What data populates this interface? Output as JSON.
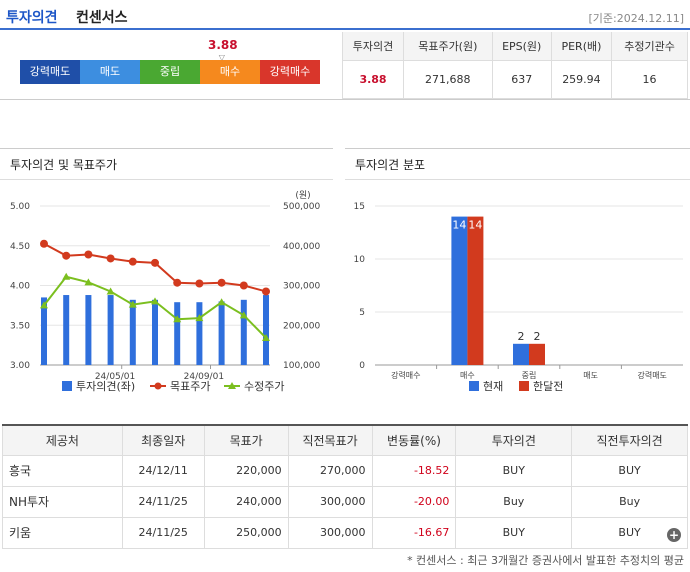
{
  "header": {
    "title_part1": "투자의견",
    "title_part2": "컨센서스",
    "base_date": "[기준:2024.12.11]"
  },
  "consensus": {
    "marker_value": "3.88",
    "marker_score": 3.88,
    "scale": [
      {
        "label": "강력매도",
        "color": "#1f4fa8"
      },
      {
        "label": "매도",
        "color": "#3d8ee0"
      },
      {
        "label": "중립",
        "color": "#4aa832"
      },
      {
        "label": "매수",
        "color": "#f5891e"
      },
      {
        "label": "강력매수",
        "color": "#d9362b"
      }
    ]
  },
  "summary": {
    "headers": [
      "투자의견",
      "목표주가(원)",
      "EPS(원)",
      "PER(배)",
      "추정기관수"
    ],
    "values": [
      "3.88",
      "271,688",
      "637",
      "259.94",
      "16"
    ]
  },
  "chart1": {
    "title": "투자의견 및 목표주가",
    "unit": "(원)",
    "left_ticks": [
      "5.00",
      "4.50",
      "4.00",
      "3.50",
      "3.00"
    ],
    "right_ticks": [
      "500,000",
      "400,000",
      "300,000",
      "200,000",
      "100,000"
    ],
    "x_ticks": [
      "24/05/01",
      "24/09/01"
    ],
    "legend": [
      "투자의견(좌)",
      "목표주가",
      "수정주가"
    ]
  },
  "chart2": {
    "title": "투자의견 분포",
    "y_ticks": [
      "15",
      "10",
      "5",
      "0"
    ],
    "legend": [
      "현재",
      "한달전"
    ]
  },
  "chart_data": [
    {
      "type": "bar+line",
      "title": "투자의견 및 목표주가",
      "xlabel": "",
      "ylabel_left": "",
      "ylabel_right": "(원)",
      "ylim_left": [
        3.0,
        5.0
      ],
      "ylim_right": [
        100000,
        500000
      ],
      "x_ticks": [
        "24/05/01",
        "24/09/01"
      ],
      "series": [
        {
          "name": "투자의견(좌)",
          "kind": "bar",
          "axis": "left",
          "color": "#2f6fdc",
          "values": [
            3.85,
            3.88,
            3.88,
            3.88,
            3.82,
            3.82,
            3.79,
            3.79,
            3.8,
            3.82,
            3.88
          ]
        },
        {
          "name": "목표주가",
          "kind": "line",
          "axis": "right",
          "color": "#d23a1e",
          "values": [
            405000,
            375000,
            378000,
            368000,
            360000,
            357000,
            307000,
            305000,
            307000,
            300000,
            285000
          ]
        },
        {
          "name": "수정주가",
          "kind": "line",
          "axis": "right",
          "color": "#7bbf1f",
          "values": [
            250000,
            322000,
            308000,
            285000,
            252000,
            260000,
            215000,
            218000,
            258000,
            225000,
            168000
          ]
        }
      ],
      "legend_position": "bottom"
    },
    {
      "type": "bar",
      "title": "투자의견 분포",
      "categories": [
        "강력매수",
        "매수",
        "중립",
        "매도",
        "강력매도"
      ],
      "ylim": [
        0,
        15
      ],
      "series": [
        {
          "name": "현재",
          "color": "#2f6fdc",
          "values": [
            0,
            14,
            2,
            0,
            0
          ]
        },
        {
          "name": "한달전",
          "color": "#d23a1e",
          "values": [
            0,
            14,
            2,
            0,
            0
          ]
        }
      ],
      "data_labels": [
        "14",
        "14",
        "2",
        "2"
      ],
      "legend_position": "bottom"
    }
  ],
  "brokers": {
    "headers": [
      "제공처",
      "최종일자",
      "목표가",
      "직전목표가",
      "변동률(%)",
      "투자의견",
      "직전투자의견"
    ],
    "rows": [
      [
        "흥국",
        "24/12/11",
        "220,000",
        "270,000",
        "-18.52",
        "BUY",
        "BUY"
      ],
      [
        "NH투자",
        "24/11/25",
        "240,000",
        "300,000",
        "-20.00",
        "Buy",
        "Buy"
      ],
      [
        "키움",
        "24/11/25",
        "250,000",
        "300,000",
        "-16.67",
        "BUY",
        "BUY"
      ]
    ]
  },
  "footnote": "* 컨센서스 : 최근 3개월간 증권사에서 발표한 추정치의 평균"
}
